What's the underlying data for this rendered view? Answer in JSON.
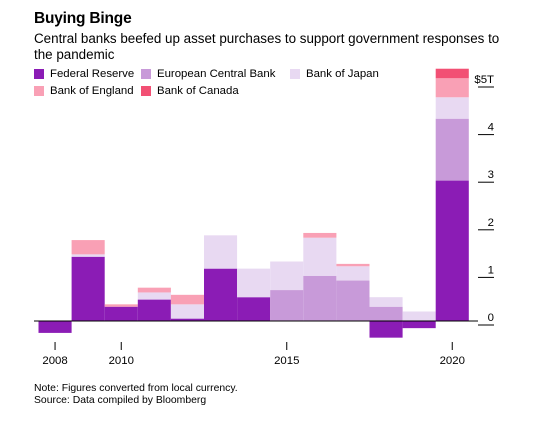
{
  "header": {
    "title": "Buying Binge",
    "subtitle": "Central banks beefed up asset purchases to support government responses to the pandemic"
  },
  "footer": {
    "note": "Note: Figures converted from local currency.",
    "source": "Source: Data compiled by Bloomberg"
  },
  "chart_data": {
    "type": "bar",
    "stacked": true,
    "unit": "trillion USD",
    "title": "Buying Binge",
    "subtitle": "Central banks beefed up asset purchases to support government responses to the pandemic",
    "xlabel": "",
    "ylabel": "",
    "ylim": [
      -0.35,
      5.3
    ],
    "y_ticks": [
      0,
      1,
      2,
      3,
      4,
      5
    ],
    "y_tick_labels": [
      "0",
      "1",
      "2",
      "3",
      "4",
      "$5T"
    ],
    "x_tick_labels": [
      "2008",
      "2010",
      "2015",
      "2020"
    ],
    "x_ticks": [
      2008,
      2010,
      2015,
      2020
    ],
    "categories": [
      2008,
      2009,
      2010,
      2011,
      2012,
      2013,
      2014,
      2015,
      2016,
      2017,
      2018,
      2019,
      2020
    ],
    "grid": false,
    "legend_position": "top",
    "series": [
      {
        "name": "Federal Reserve",
        "color": "#8b1cb5",
        "values": [
          -0.25,
          1.35,
          0.3,
          0.45,
          0.05,
          1.1,
          0.5,
          0.0,
          0.0,
          0.0,
          -0.35,
          -0.15,
          2.95
        ]
      },
      {
        "name": "European Central Bank",
        "color": "#c89ad9",
        "values": [
          0.0,
          0.0,
          0.0,
          0.0,
          0.0,
          0.0,
          0.0,
          0.65,
          0.95,
          0.85,
          0.3,
          0.0,
          1.3
        ]
      },
      {
        "name": "Bank of Japan",
        "color": "#e8d9f2",
        "values": [
          0.0,
          0.05,
          0.0,
          0.15,
          0.3,
          0.7,
          0.6,
          0.6,
          0.8,
          0.3,
          0.2,
          0.2,
          0.45
        ]
      },
      {
        "name": "Bank of England",
        "color": "#f9a0b5",
        "values": [
          0.0,
          0.3,
          0.05,
          0.1,
          0.2,
          0.0,
          0.0,
          0.0,
          0.1,
          0.05,
          0.0,
          0.0,
          0.4
        ]
      },
      {
        "name": "Bank of Canada",
        "color": "#f25074",
        "values": [
          0.0,
          0.0,
          0.0,
          0.0,
          0.0,
          0.0,
          0.0,
          0.0,
          0.0,
          0.0,
          0.0,
          0.0,
          0.2
        ]
      }
    ]
  }
}
